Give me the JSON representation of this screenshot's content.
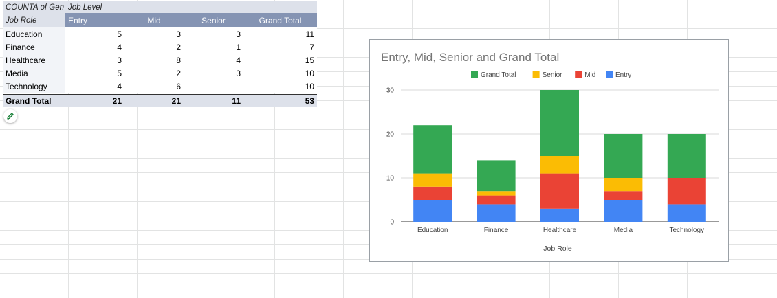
{
  "pivot": {
    "corner_label": "COUNTA of Gen",
    "col_group_label": "Job Level",
    "row_header_label": "Job Role",
    "columns": [
      "Entry",
      "Mid",
      "Senior",
      "Grand Total"
    ],
    "rows": [
      {
        "label": "Education",
        "values": [
          "5",
          "3",
          "3",
          "11"
        ]
      },
      {
        "label": "Finance",
        "values": [
          "4",
          "2",
          "1",
          "7"
        ]
      },
      {
        "label": "Healthcare",
        "values": [
          "3",
          "8",
          "4",
          "15"
        ]
      },
      {
        "label": "Media",
        "values": [
          "5",
          "2",
          "3",
          "10"
        ]
      },
      {
        "label": "Technology",
        "values": [
          "4",
          "6",
          "",
          "10"
        ]
      }
    ],
    "total": {
      "label": "Grand Total",
      "values": [
        "21",
        "21",
        "11",
        "53"
      ]
    }
  },
  "edit_icon": "pencil-icon",
  "chart_data": {
    "type": "bar",
    "stacked": true,
    "title": "Entry, Mid, Senior and Grand Total",
    "xlabel": "Job Role",
    "ylabel": "",
    "categories": [
      "Education",
      "Finance",
      "Healthcare",
      "Media",
      "Technology"
    ],
    "ylim": [
      0,
      30
    ],
    "yticks": [
      0,
      10,
      20,
      30
    ],
    "grid": true,
    "legend_position": "top",
    "legend": [
      "Grand Total",
      "Senior",
      "Mid",
      "Entry"
    ],
    "series": [
      {
        "name": "Entry",
        "color": "#4285f4",
        "values": [
          5,
          4,
          3,
          5,
          4
        ]
      },
      {
        "name": "Mid",
        "color": "#ea4335",
        "values": [
          3,
          2,
          8,
          2,
          6
        ]
      },
      {
        "name": "Senior",
        "color": "#fbbc04",
        "values": [
          3,
          1,
          4,
          3,
          0
        ]
      },
      {
        "name": "Grand Total",
        "color": "#34a853",
        "values": [
          11,
          7,
          15,
          10,
          10
        ]
      }
    ]
  }
}
